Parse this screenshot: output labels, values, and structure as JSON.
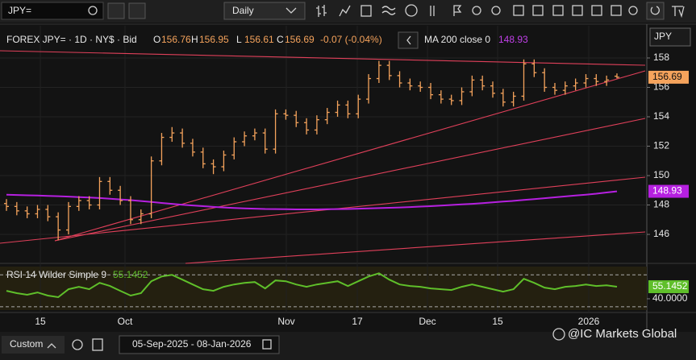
{
  "toolbar": {
    "symbol": "JPY=",
    "interval": "Daily"
  },
  "chart_data": {
    "type": "ohlc",
    "title": "FOREX JPY= · 1D · NY$ · Bid",
    "ohlc_labels": [
      "O",
      "H",
      "L",
      "C"
    ],
    "change": "-0.07 (-0.04%)",
    "axis_label": "JPY",
    "color": "#f5a35c",
    "bars": [
      [
        148.1,
        148.4,
        147.6,
        147.9
      ],
      [
        147.9,
        148.2,
        147.3,
        147.6
      ],
      [
        147.6,
        147.9,
        147.1,
        147.4
      ],
      [
        147.4,
        148.0,
        147.1,
        147.7
      ],
      [
        147.7,
        148.0,
        146.9,
        147.2
      ],
      [
        147.2,
        147.5,
        145.6,
        146.3
      ],
      [
        146.3,
        148.2,
        146.0,
        147.9
      ],
      [
        147.9,
        148.6,
        147.6,
        148.3
      ],
      [
        148.3,
        148.6,
        147.7,
        148.0
      ],
      [
        148.0,
        149.9,
        147.7,
        149.6
      ],
      [
        149.6,
        149.9,
        148.7,
        149.0
      ],
      [
        149.0,
        149.3,
        148.0,
        148.3
      ],
      [
        148.3,
        148.6,
        146.7,
        147.0
      ],
      [
        147.0,
        147.7,
        146.7,
        147.4
      ],
      [
        147.4,
        151.3,
        147.1,
        151.0
      ],
      [
        151.0,
        152.9,
        150.7,
        152.6
      ],
      [
        152.6,
        153.3,
        152.3,
        152.9
      ],
      [
        152.9,
        153.2,
        151.9,
        152.2
      ],
      [
        152.2,
        152.5,
        151.3,
        151.6
      ],
      [
        151.6,
        151.9,
        150.5,
        150.8
      ],
      [
        150.8,
        151.1,
        150.1,
        150.6
      ],
      [
        150.6,
        151.7,
        150.3,
        151.4
      ],
      [
        151.4,
        152.6,
        151.1,
        152.3
      ],
      [
        152.3,
        153.0,
        152.0,
        152.7
      ],
      [
        152.7,
        153.2,
        152.4,
        152.9
      ],
      [
        152.9,
        153.2,
        151.5,
        151.8
      ],
      [
        151.8,
        154.5,
        151.5,
        154.2
      ],
      [
        154.2,
        154.5,
        153.8,
        154.1
      ],
      [
        154.1,
        154.4,
        153.3,
        153.6
      ],
      [
        153.6,
        153.9,
        152.8,
        153.1
      ],
      [
        153.1,
        154.1,
        152.8,
        153.8
      ],
      [
        153.8,
        154.6,
        153.5,
        154.3
      ],
      [
        154.3,
        155.1,
        154.0,
        154.8
      ],
      [
        154.8,
        155.1,
        153.9,
        154.2
      ],
      [
        154.2,
        155.5,
        153.9,
        155.2
      ],
      [
        155.2,
        156.9,
        154.9,
        156.6
      ],
      [
        156.6,
        157.8,
        156.3,
        157.5
      ],
      [
        157.5,
        157.8,
        156.5,
        156.8
      ],
      [
        156.8,
        157.1,
        156.0,
        156.3
      ],
      [
        156.3,
        156.6,
        155.8,
        156.1
      ],
      [
        156.1,
        156.4,
        155.7,
        156.0
      ],
      [
        156.0,
        156.3,
        155.2,
        155.5
      ],
      [
        155.5,
        155.8,
        154.9,
        155.2
      ],
      [
        155.2,
        155.5,
        154.8,
        155.1
      ],
      [
        155.1,
        156.0,
        154.8,
        155.7
      ],
      [
        155.7,
        156.8,
        155.4,
        156.5
      ],
      [
        156.5,
        156.8,
        155.8,
        156.1
      ],
      [
        156.1,
        156.4,
        155.3,
        155.6
      ],
      [
        155.6,
        155.9,
        154.7,
        155.0
      ],
      [
        155.0,
        155.7,
        154.7,
        155.4
      ],
      [
        155.4,
        157.9,
        155.1,
        157.6
      ],
      [
        157.6,
        157.9,
        156.7,
        157.0
      ],
      [
        157.0,
        157.3,
        155.7,
        156.0
      ],
      [
        156.0,
        156.3,
        155.5,
        155.8
      ],
      [
        155.8,
        156.4,
        155.5,
        156.1
      ],
      [
        156.1,
        156.6,
        155.8,
        156.3
      ],
      [
        156.3,
        156.9,
        156.0,
        156.6
      ],
      [
        156.6,
        156.9,
        156.1,
        156.4
      ],
      [
        156.4,
        156.8,
        156.1,
        156.5
      ],
      [
        156.76,
        156.95,
        156.61,
        156.69
      ]
    ],
    "ylim": [
      144.03,
      160.19
    ],
    "yticks": [
      146,
      148,
      150,
      152,
      154,
      156,
      158
    ],
    "ma": {
      "name": "MA 200 close 0",
      "color": "#b620e0",
      "values": [
        148.7,
        148.68,
        148.66,
        148.64,
        148.62,
        148.6,
        148.57,
        148.54,
        148.51,
        148.47,
        148.43,
        148.38,
        148.33,
        148.27,
        148.21,
        148.14,
        148.08,
        148.02,
        147.97,
        147.92,
        147.87,
        147.83,
        147.8,
        147.77,
        147.75,
        147.73,
        147.72,
        147.71,
        147.7,
        147.7,
        147.7,
        147.71,
        147.72,
        147.73,
        147.75,
        147.77,
        147.79,
        147.81,
        147.83,
        147.86,
        147.89,
        147.92,
        147.96,
        148.0,
        148.04,
        148.08,
        148.13,
        148.18,
        148.23,
        148.28,
        148.34,
        148.4,
        148.46,
        148.52,
        148.58,
        148.64,
        148.7,
        148.77,
        148.85,
        148.93
      ]
    },
    "time_labels": [
      "15",
      "Oct",
      "Nov",
      "17",
      "Dec",
      "15",
      "2026"
    ],
    "rsi": {
      "name": "RSI 14 Wilder Simple 9",
      "color": "#5fbf2a",
      "values": [
        50,
        47,
        45,
        48,
        44,
        42,
        52,
        55,
        52,
        60,
        56,
        50,
        44,
        47,
        62,
        68,
        70,
        64,
        58,
        52,
        50,
        55,
        58,
        60,
        61,
        53,
        63,
        62,
        58,
        55,
        58,
        60,
        62,
        56,
        62,
        68,
        72,
        64,
        58,
        56,
        55,
        53,
        52,
        51,
        55,
        58,
        55,
        52,
        49,
        52,
        65,
        60,
        54,
        52,
        55,
        56,
        58,
        56,
        57,
        55.1452
      ],
      "ylim": [
        22.8,
        81.4
      ],
      "yticks": [
        {
          "value": 40,
          "label": "40.0000"
        }
      ],
      "levels": [
        70,
        30
      ]
    }
  },
  "footer": {
    "range_button": "Custom",
    "date_range": "05-Sep-2025 - 08-Jan-2026",
    "brand": "@IC Markets Global"
  }
}
